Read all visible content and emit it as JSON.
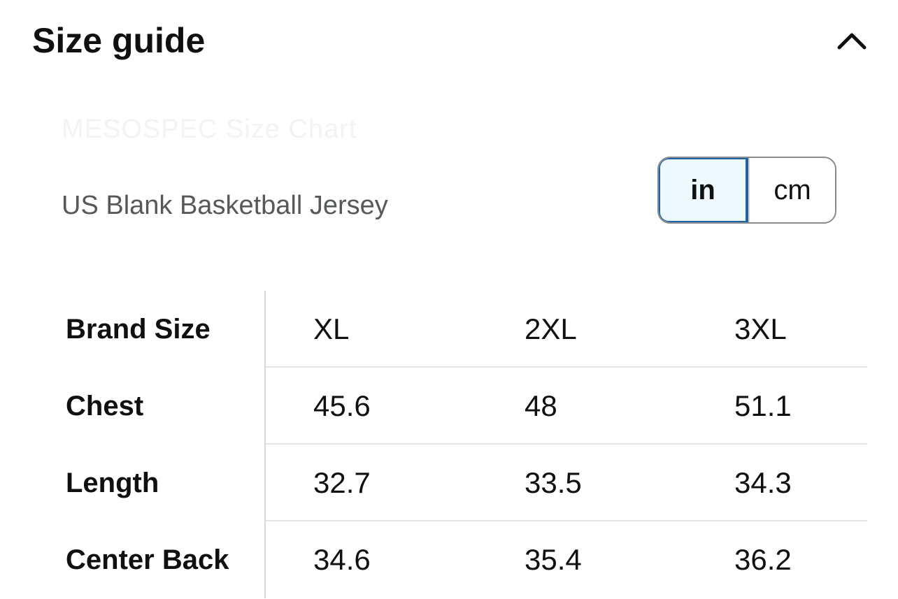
{
  "header": {
    "title": "Size guide",
    "collapse_icon": "chevron-up-icon"
  },
  "faded_label": "MESOSPEC Size Chart",
  "subtitle": "US Blank Basketball Jersey",
  "unit_toggle": {
    "options": [
      "in",
      "cm"
    ],
    "selected": "in",
    "accent_color": "#2162a1"
  },
  "table": {
    "row_headers": [
      "Brand Size",
      "Chest",
      "Length",
      "Center Back"
    ],
    "columns": [
      "XL",
      "2XL",
      "3XL"
    ],
    "rows": [
      [
        "XL",
        "2XL",
        "3XL"
      ],
      [
        "45.6",
        "48",
        "51.1"
      ],
      [
        "32.7",
        "33.5",
        "34.3"
      ],
      [
        "34.6",
        "35.4",
        "36.2"
      ]
    ]
  }
}
